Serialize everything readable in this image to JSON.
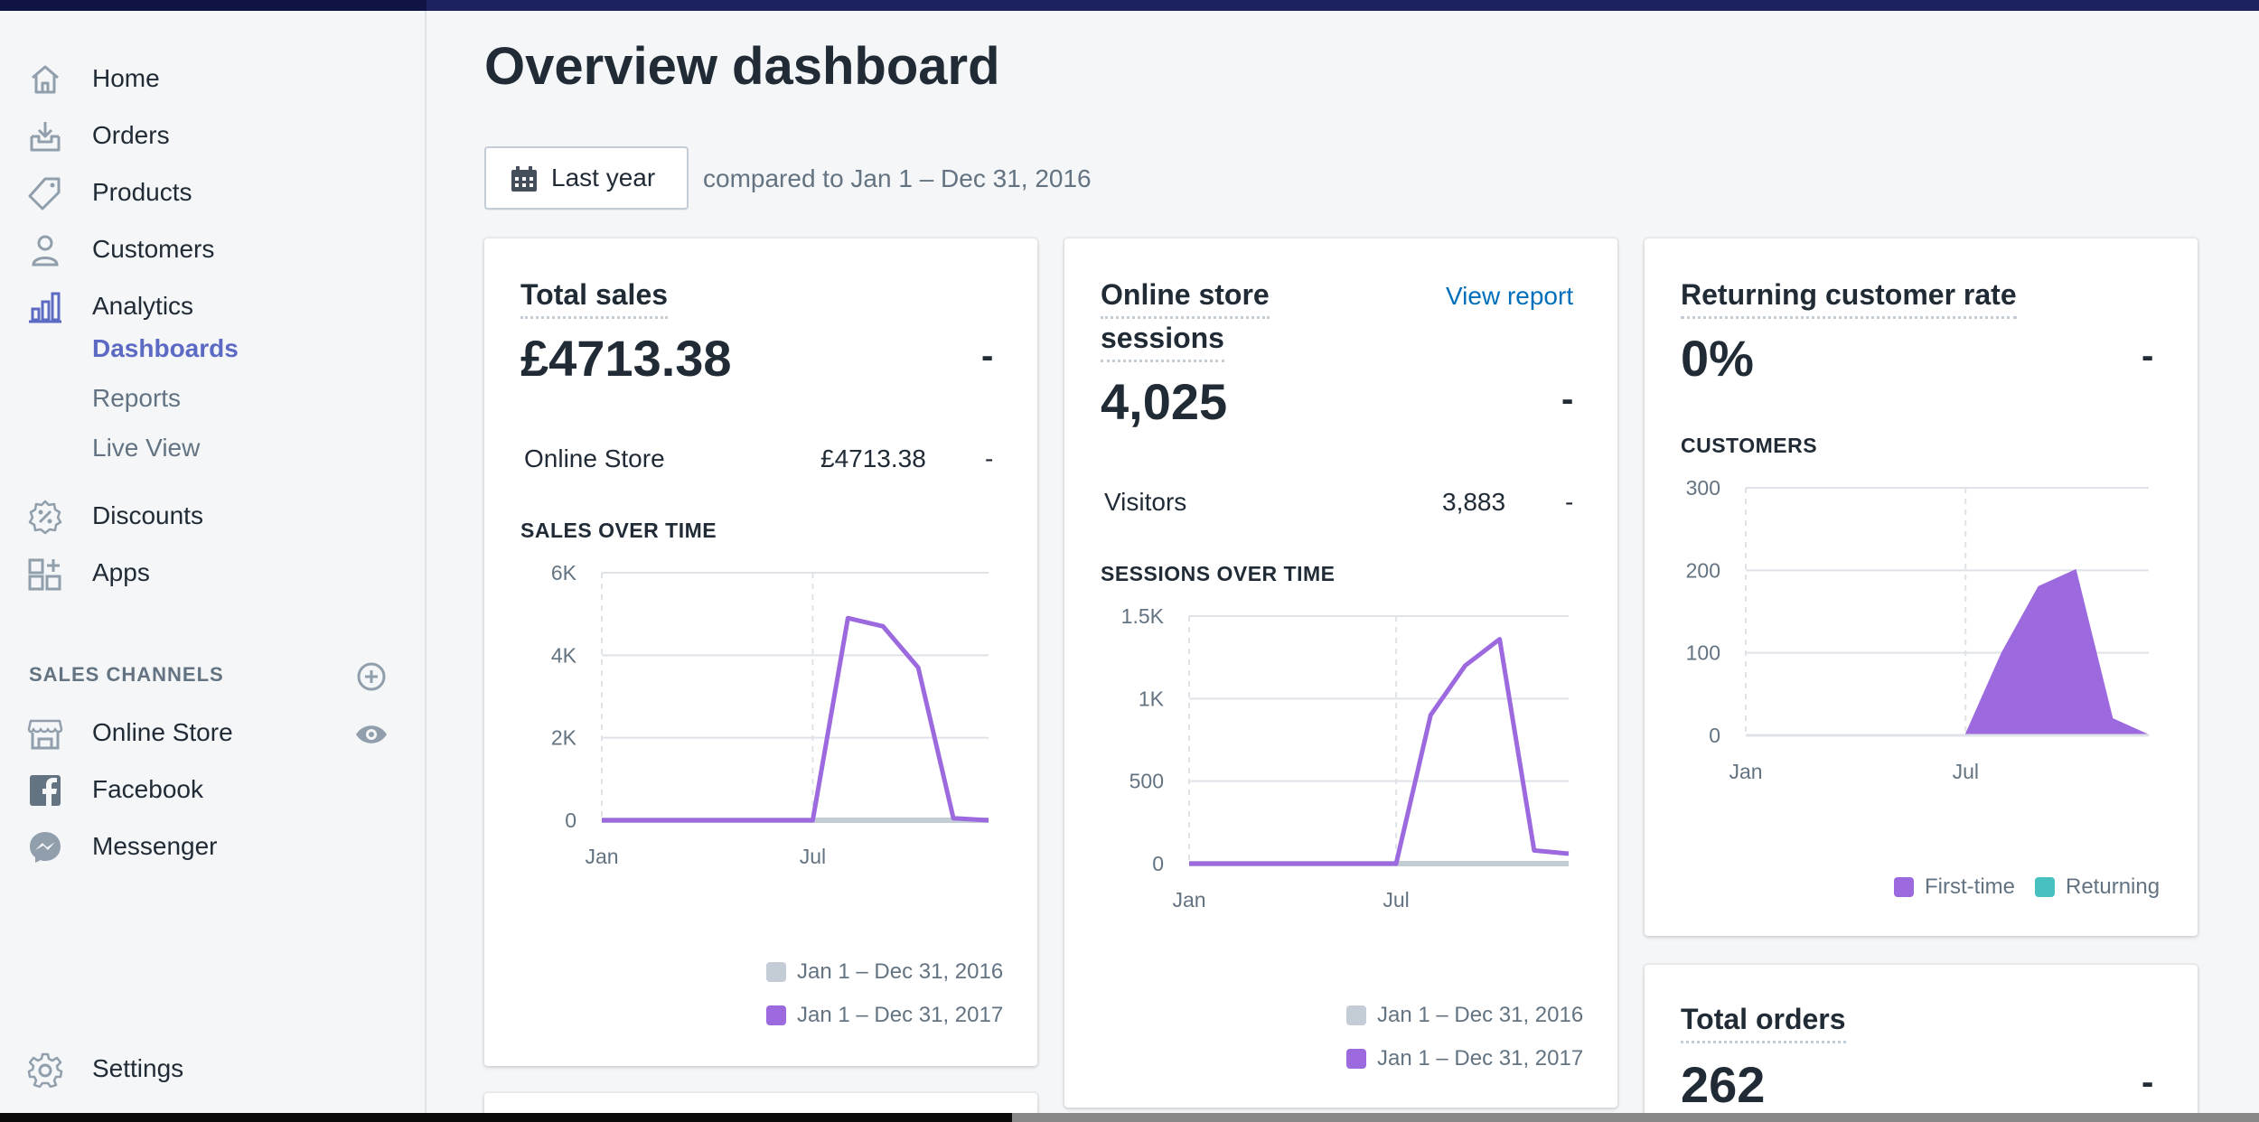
{
  "nav": {
    "items": [
      {
        "label": "Home",
        "icon": "home-icon"
      },
      {
        "label": "Orders",
        "icon": "orders-icon"
      },
      {
        "label": "Products",
        "icon": "tag-icon"
      },
      {
        "label": "Customers",
        "icon": "person-icon"
      },
      {
        "label": "Analytics",
        "icon": "bar-chart-icon"
      }
    ],
    "analytics_sub": [
      "Dashboards",
      "Reports",
      "Live View"
    ],
    "items2": [
      {
        "label": "Discounts",
        "icon": "discount-icon"
      },
      {
        "label": "Apps",
        "icon": "apps-icon"
      }
    ],
    "sales_channels_title": "SALES CHANNELS",
    "channels": [
      {
        "label": "Online Store",
        "icon": "store-icon"
      },
      {
        "label": "Facebook",
        "icon": "facebook-icon"
      },
      {
        "label": "Messenger",
        "icon": "messenger-icon"
      }
    ],
    "settings": "Settings"
  },
  "header": {
    "title": "Overview dashboard",
    "date_button": "Last year",
    "compare_text": "compared to Jan 1 – Dec 31, 2016"
  },
  "colors": {
    "accent": "#5c6ac4",
    "series_2017": "#9c6ade",
    "series_2016": "#c4cdd5",
    "returning": "#47c1bf",
    "link": "#006fbb"
  },
  "total_sales": {
    "title": "Total sales",
    "value": "£4713.38",
    "change": "-",
    "rows": [
      {
        "label": "Online Store",
        "value": "£4713.38",
        "change": "-"
      }
    ],
    "chart_title": "SALES OVER TIME",
    "legend": [
      "Jan 1 – Dec 31, 2016",
      "Jan 1 – Dec 31, 2017"
    ]
  },
  "sessions": {
    "title_line1": "Online store",
    "title_line2": "sessions",
    "link": "View report",
    "value": "4,025",
    "change": "-",
    "rows": [
      {
        "label": "Visitors",
        "value": "3,883",
        "change": "-"
      }
    ],
    "chart_title": "SESSIONS OVER TIME",
    "legend": [
      "Jan 1 – Dec 31, 2016",
      "Jan 1 – Dec 31, 2017"
    ]
  },
  "returning": {
    "title": "Returning customer rate",
    "value": "0%",
    "change": "-",
    "chart_title": "CUSTOMERS",
    "legend": [
      "First-time",
      "Returning"
    ]
  },
  "total_orders": {
    "title": "Total orders",
    "value": "262",
    "change": "-"
  },
  "chart_data": [
    {
      "type": "line",
      "title": "SALES OVER TIME",
      "x_ticks": [
        "Jan",
        "Jul"
      ],
      "y_ticks": [
        "0",
        "2K",
        "4K",
        "6K"
      ],
      "ylim": [
        0,
        6000
      ],
      "x": [
        0,
        1,
        2,
        3,
        4,
        5,
        6,
        7,
        8,
        9,
        10,
        11
      ],
      "series": [
        {
          "name": "Jan 1 – Dec 31, 2016",
          "values": [
            0,
            0,
            0,
            0,
            0,
            0,
            0,
            0,
            0,
            0,
            0,
            0
          ]
        },
        {
          "name": "Jan 1 – Dec 31, 2017",
          "values": [
            0,
            0,
            0,
            0,
            0,
            0,
            0,
            4900,
            4700,
            3700,
            50,
            0
          ]
        }
      ]
    },
    {
      "type": "line",
      "title": "SESSIONS OVER TIME",
      "x_ticks": [
        "Jan",
        "Jul"
      ],
      "y_ticks": [
        "0",
        "500",
        "1K",
        "1.5K"
      ],
      "ylim": [
        0,
        1500
      ],
      "x": [
        0,
        1,
        2,
        3,
        4,
        5,
        6,
        7,
        8,
        9,
        10,
        11
      ],
      "series": [
        {
          "name": "Jan 1 – Dec 31, 2016",
          "values": [
            0,
            0,
            0,
            0,
            0,
            0,
            0,
            0,
            0,
            0,
            0,
            0
          ]
        },
        {
          "name": "Jan 1 – Dec 31, 2017",
          "values": [
            0,
            0,
            0,
            0,
            0,
            0,
            0,
            900,
            1200,
            1360,
            80,
            60
          ]
        }
      ]
    },
    {
      "type": "area",
      "title": "CUSTOMERS",
      "x_ticks": [
        "Jan",
        "Jul"
      ],
      "y_ticks": [
        "0",
        "100",
        "200",
        "300"
      ],
      "ylim": [
        0,
        300
      ],
      "x": [
        0,
        1,
        2,
        3,
        4,
        5,
        6,
        7,
        8,
        9,
        10,
        11
      ],
      "series": [
        {
          "name": "First-time",
          "values": [
            0,
            0,
            0,
            0,
            0,
            0,
            0,
            100,
            180,
            200,
            20,
            0
          ]
        },
        {
          "name": "Returning",
          "values": [
            0,
            0,
            0,
            0,
            0,
            0,
            0,
            0,
            0,
            0,
            0,
            0
          ]
        }
      ]
    }
  ]
}
